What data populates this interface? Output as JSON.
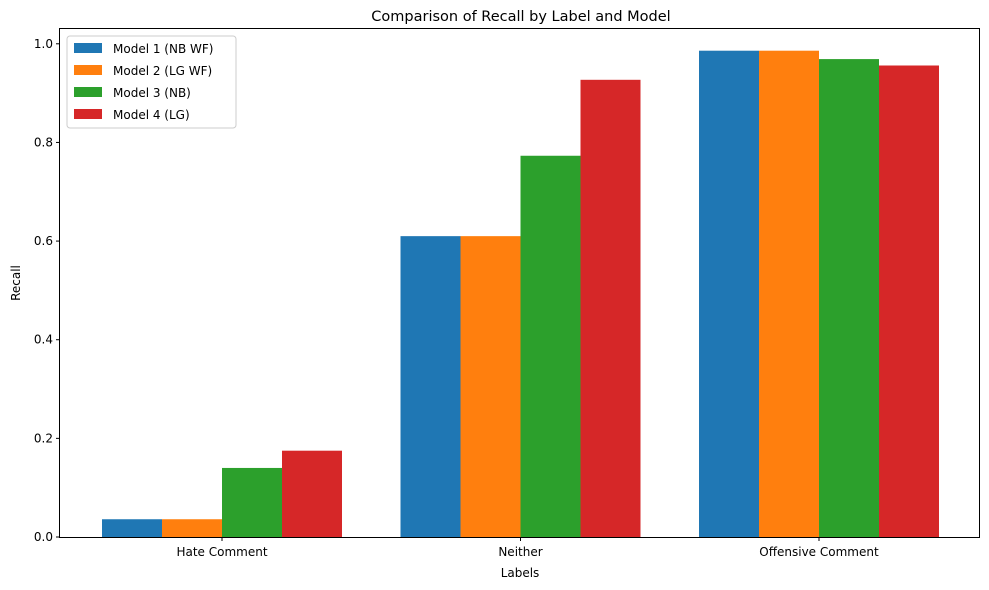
{
  "chart_data": {
    "type": "bar",
    "title": "Comparison of Recall by Label and Model",
    "xlabel": "Labels",
    "ylabel": "Recall",
    "categories": [
      "Hate Comment",
      "Neither",
      "Offensive Comment"
    ],
    "ylim": [
      0,
      1.03
    ],
    "yticks": [
      0.0,
      0.2,
      0.4,
      0.6,
      0.8,
      1.0
    ],
    "ytick_labels": [
      "0.0",
      "0.2",
      "0.4",
      "0.6",
      "0.8",
      "1.0"
    ],
    "grid": false,
    "legend_position": "top-left",
    "series": [
      {
        "name": "Model 1 (NB WF)",
        "color": "#1f77b4",
        "values": [
          0.036,
          0.61,
          0.986
        ]
      },
      {
        "name": "Model 2 (LG WF)",
        "color": "#ff7f0e",
        "values": [
          0.036,
          0.61,
          0.986
        ]
      },
      {
        "name": "Model 3 (NB)",
        "color": "#2ca02c",
        "values": [
          0.14,
          0.773,
          0.969
        ]
      },
      {
        "name": "Model 4 (LG)",
        "color": "#d62728",
        "values": [
          0.175,
          0.927,
          0.956
        ]
      }
    ]
  }
}
